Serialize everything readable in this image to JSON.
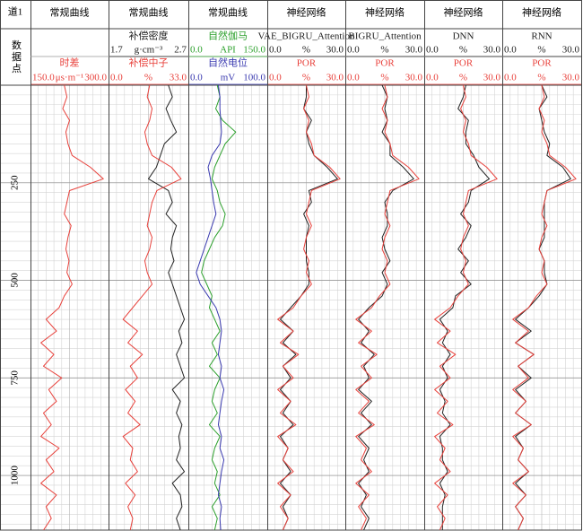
{
  "chart_data": {
    "type": "well_log",
    "depth_track_title": "道1",
    "ylabel": "数据点",
    "ylim": [
      0,
      1140
    ],
    "yticks": [
      250,
      500,
      750,
      1000
    ],
    "grid": true,
    "depth": [
      0,
      30,
      60,
      90,
      120,
      150,
      180,
      210,
      240,
      270,
      300,
      330,
      360,
      390,
      420,
      450,
      480,
      510,
      540,
      570,
      600,
      630,
      660,
      690,
      720,
      750,
      780,
      810,
      840,
      870,
      900,
      930,
      960,
      990,
      1020,
      1050,
      1080,
      1110,
      1140
    ],
    "tracks": [
      {
        "title": "常规曲线",
        "curves": [
          {
            "name": "时差",
            "unit": "μs·m⁻¹",
            "xlim": [
              {
                "value": 150,
                "label": "150.0"
              },
              {
                "value": 300,
                "label": "300.0"
              }
            ],
            "color": "#e8413b",
            "values": [
              215,
              220,
              212,
              225,
              218,
              222,
              230,
              265,
              290,
              225,
              220,
              215,
              228,
              222,
              218,
              224,
              220,
              230,
              215,
              205,
              180,
              200,
              170,
              195,
              175,
              210,
              185,
              200,
              175,
              190,
              170,
              205,
              180,
              195,
              170,
              200,
              180,
              190,
              175
            ]
          }
        ]
      },
      {
        "title": "常规曲线",
        "curves": [
          {
            "name": "补偿密度",
            "unit": "g·cm⁻³",
            "xlim": [
              1.7,
              2.7
            ],
            "color": "#222222",
            "values": [
              2.45,
              2.5,
              2.42,
              2.48,
              2.55,
              2.4,
              2.35,
              2.3,
              2.2,
              2.45,
              2.5,
              2.42,
              2.55,
              2.5,
              2.48,
              2.52,
              2.45,
              2.5,
              2.55,
              2.6,
              2.65,
              2.58,
              2.62,
              2.55,
              2.6,
              2.65,
              2.5,
              2.6,
              2.55,
              2.62,
              2.58,
              2.6,
              2.55,
              2.65,
              2.5,
              2.6,
              2.62,
              2.55,
              2.6
            ]
          },
          {
            "name": "补偿中子",
            "unit": "%",
            "xlim": [
              {
                "value": 0,
                "label": "0.0"
              },
              {
                "value": 33,
                "label": "33.0"
              }
            ],
            "color": "#e8413b",
            "values": [
              17,
              16,
              18,
              17,
              15,
              16,
              18,
              26,
              30,
              20,
              18,
              17,
              16,
              18,
              17,
              15,
              16,
              18,
              14,
              10,
              6,
              12,
              8,
              14,
              9,
              12,
              7,
              11,
              8,
              13,
              6,
              10,
              9,
              12,
              7,
              11,
              8,
              10,
              9
            ]
          }
        ]
      },
      {
        "title": "常规曲线",
        "curves": [
          {
            "name": "自然伽马",
            "unit": "API",
            "xlim": [
              {
                "value": 0,
                "label": "0.0"
              },
              {
                "value": 150,
                "label": "150.0"
              }
            ],
            "color": "#2ca02c",
            "values": [
              55,
              60,
              52,
              65,
              90,
              70,
              60,
              50,
              45,
              55,
              60,
              70,
              65,
              50,
              40,
              30,
              25,
              35,
              45,
              40,
              50,
              60,
              45,
              55,
              40,
              60,
              50,
              45,
              55,
              40,
              60,
              50,
              45,
              55,
              50,
              60,
              45,
              55,
              50
            ]
          },
          {
            "name": "自然电位",
            "unit": "mV",
            "xlim": [
              {
                "value": 0,
                "label": "0.0"
              },
              {
                "value": 100,
                "label": "100.0"
              }
            ],
            "color": "#3a3ab0",
            "values": [
              38,
              40,
              40,
              41,
              42,
              40,
              30,
              25,
              28,
              30,
              32,
              35,
              30,
              25,
              20,
              15,
              10,
              15,
              25,
              35,
              40,
              42,
              40,
              38,
              42,
              40,
              45,
              42,
              40,
              38,
              42,
              40,
              45,
              42,
              40,
              38,
              42,
              40,
              41
            ]
          }
        ]
      },
      {
        "title": "神经网络",
        "curves": [
          {
            "name": "VAE_BIGRU_Attention",
            "unit": "%",
            "xlim": [
              {
                "value": 0,
                "label": "0.0"
              },
              {
                "value": 30,
                "label": "30.0"
              }
            ],
            "color": "#222222",
            "values": [
              15,
              15,
              14,
              17,
              15,
              16,
              18,
              23,
              27,
              16,
              17,
              14,
              16,
              15,
              15,
              15,
              16,
              16,
              13,
              9,
              5,
              10,
              6,
              11,
              6,
              9,
              5,
              9,
              6,
              10,
              5,
              8,
              6,
              9,
              5,
              9,
              6,
              8,
              6
            ]
          },
          {
            "name": "POR",
            "unit": "%",
            "xlim": [
              {
                "value": 0,
                "label": "0.0"
              },
              {
                "value": 30,
                "label": "30.0"
              }
            ],
            "color": "#e8413b",
            "values": [
              15,
              16,
              14,
              16,
              15,
              17,
              18,
              24,
              28,
              17,
              16,
              15,
              17,
              15,
              14,
              16,
              15,
              17,
              13,
              10,
              4,
              10,
              5,
              12,
              6,
              10,
              4,
              9,
              5,
              11,
              4,
              8,
              6,
              10,
              4,
              9,
              5,
              8,
              6
            ]
          }
        ]
      },
      {
        "title": "神经网络",
        "curves": [
          {
            "name": "BIGRU_Attention",
            "unit": "%",
            "xlim": [
              {
                "value": 0,
                "label": "0.0"
              },
              {
                "value": 30,
                "label": "30.0"
              }
            ],
            "color": "#222222",
            "values": [
              14,
              16,
              15,
              16,
              14,
              17,
              17,
              22,
              26,
              18,
              15,
              16,
              16,
              14,
              15,
              17,
              14,
              16,
              14,
              9,
              5,
              9,
              6,
              11,
              7,
              9,
              5,
              10,
              6,
              10,
              5,
              9,
              7,
              9,
              5,
              8,
              6,
              9,
              7
            ]
          },
          {
            "name": "POR",
            "unit": "%",
            "xlim": [
              {
                "value": 0,
                "label": "0.0"
              },
              {
                "value": 30,
                "label": "30.0"
              }
            ],
            "color": "#e8413b",
            "values": [
              15,
              16,
              14,
              16,
              15,
              17,
              18,
              24,
              28,
              17,
              16,
              15,
              17,
              15,
              14,
              16,
              15,
              17,
              13,
              10,
              4,
              10,
              5,
              12,
              6,
              10,
              4,
              9,
              5,
              11,
              4,
              8,
              6,
              10,
              4,
              9,
              5,
              8,
              6
            ]
          }
        ]
      },
      {
        "title": "神经网络",
        "curves": [
          {
            "name": "DNN",
            "unit": "%",
            "xlim": [
              {
                "value": 0,
                "label": "0.0"
              },
              {
                "value": 30,
                "label": "30.0"
              }
            ],
            "color": "#222222",
            "values": [
              16,
              15,
              13,
              17,
              16,
              16,
              19,
              21,
              25,
              18,
              17,
              14,
              18,
              16,
              13,
              17,
              14,
              18,
              12,
              11,
              6,
              9,
              7,
              10,
              7,
              9,
              6,
              8,
              7,
              10,
              6,
              7,
              7,
              9,
              6,
              8,
              7,
              7,
              7
            ]
          },
          {
            "name": "POR",
            "unit": "%",
            "xlim": [
              {
                "value": 0,
                "label": "0.0"
              },
              {
                "value": 30,
                "label": "30.0"
              }
            ],
            "color": "#e8413b",
            "values": [
              15,
              16,
              14,
              16,
              15,
              17,
              18,
              24,
              28,
              17,
              16,
              15,
              17,
              15,
              14,
              16,
              15,
              17,
              13,
              10,
              4,
              10,
              5,
              12,
              6,
              10,
              4,
              9,
              5,
              11,
              4,
              8,
              6,
              10,
              4,
              9,
              5,
              8,
              6
            ]
          }
        ]
      },
      {
        "title": "神经网络",
        "curves": [
          {
            "name": "RNN",
            "unit": "%",
            "xlim": [
              {
                "value": 0,
                "label": "0.0"
              },
              {
                "value": 30,
                "label": "30.0"
              }
            ],
            "color": "#222222",
            "values": [
              15,
              17,
              14,
              15,
              16,
              18,
              17,
              23,
              26,
              17,
              16,
              16,
              16,
              16,
              14,
              16,
              16,
              17,
              14,
              10,
              5,
              11,
              5,
              12,
              6,
              11,
              5,
              9,
              5,
              11,
              5,
              8,
              6,
              10,
              5,
              9,
              5,
              8,
              6
            ]
          },
          {
            "name": "POR",
            "unit": "%",
            "xlim": [
              {
                "value": 0,
                "label": "0.0"
              },
              {
                "value": 30,
                "label": "30.0"
              }
            ],
            "color": "#e8413b",
            "values": [
              15,
              16,
              14,
              16,
              15,
              17,
              18,
              24,
              28,
              17,
              16,
              15,
              17,
              15,
              14,
              16,
              15,
              17,
              13,
              10,
              4,
              10,
              5,
              12,
              6,
              10,
              4,
              9,
              5,
              11,
              4,
              8,
              6,
              10,
              4,
              9,
              5,
              8,
              6
            ]
          }
        ]
      }
    ]
  }
}
